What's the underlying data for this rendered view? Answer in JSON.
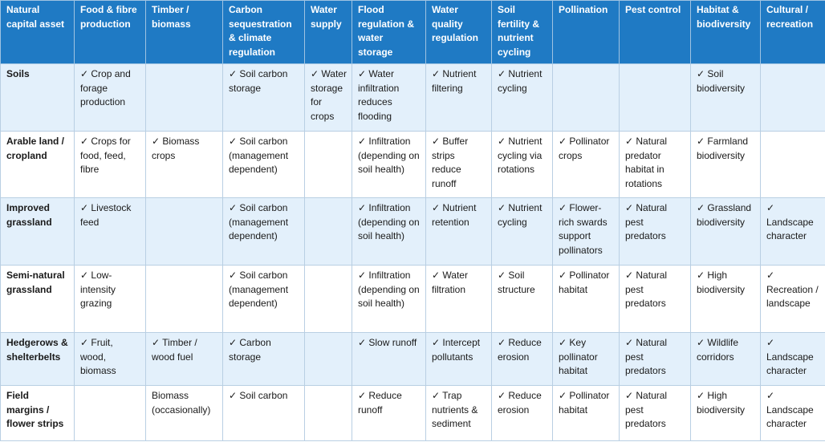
{
  "table": {
    "headers": [
      "Natural capital asset",
      "Food & fibre production",
      "Timber / biomass",
      "Carbon sequestration & climate regulation",
      "Water supply",
      "Flood regulation & water storage",
      "Water quality regulation",
      "Soil fertility & nutrient cycling",
      "Pollination",
      "Pest control",
      "Habitat & biodiversity",
      "Cultural / recreation"
    ],
    "rows": [
      {
        "asset": "Soils",
        "cells": [
          "✓ Crop and forage production",
          "",
          "✓ Soil carbon storage",
          "✓ Water storage for crops",
          "✓ Water infiltration reduces flooding",
          "✓ Nutrient filtering",
          "✓ Nutrient cycling",
          "",
          "",
          "✓ Soil biodiversity",
          ""
        ]
      },
      {
        "asset": "Arable land / cropland",
        "cells": [
          "✓ Crops for food, feed, fibre",
          "✓ Biomass crops",
          "✓ Soil carbon (management dependent)",
          "",
          "✓ Infiltration (depending on soil health)",
          "✓ Buffer strips reduce runoff",
          "✓ Nutrient cycling via rotations",
          "✓ Pollinator crops",
          "✓ Natural predator habitat in rotations",
          "✓ Farmland biodiversity",
          ""
        ]
      },
      {
        "asset": "Improved grassland",
        "cells": [
          "✓ Livestock feed",
          "",
          "✓ Soil carbon (management dependent)",
          "",
          "✓ Infiltration (depending on soil health)",
          "✓ Nutrient retention",
          "✓ Nutrient cycling",
          "✓ Flower-rich swards support pollinators",
          "✓ Natural pest predators",
          "✓ Grassland biodiversity",
          "✓ Landscape character"
        ]
      },
      {
        "asset": "Semi-natural grassland",
        "cells": [
          "✓ Low-intensity grazing",
          "",
          "✓ Soil carbon (management dependent)",
          "",
          "✓ Infiltration (depending on soil health)",
          "✓ Water filtration",
          "✓ Soil structure",
          "✓ Pollinator habitat",
          "✓ Natural pest predators",
          "✓ High biodiversity",
          "✓ Recreation / landscape"
        ]
      },
      {
        "asset": "Hedgerows & shelterbelts",
        "cells": [
          "✓ Fruit, wood, biomass",
          "✓ Timber / wood fuel",
          "✓ Carbon storage",
          "",
          "✓ Slow runoff",
          "✓ Intercept pollutants",
          "✓ Reduce erosion",
          "✓ Key pollinator habitat",
          "✓ Natural pest predators",
          "✓ Wildlife corridors",
          "✓ Landscape character"
        ]
      },
      {
        "asset": "Field margins / flower strips",
        "cells": [
          "",
          "Biomass (occasionally)",
          "✓ Soil carbon",
          "",
          "✓ Reduce runoff",
          "✓ Trap nutrients & sediment",
          "✓ Reduce erosion",
          "✓ Pollinator habitat",
          "✓ Natural pest predators",
          "✓ High biodiversity",
          "✓ Landscape character"
        ]
      }
    ]
  }
}
